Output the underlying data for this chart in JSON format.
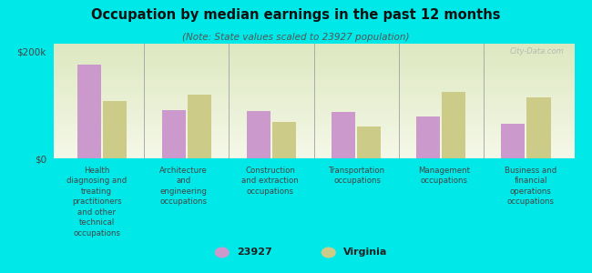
{
  "title": "Occupation by median earnings in the past 12 months",
  "subtitle": "(Note: State values scaled to 23927 population)",
  "categories": [
    "Health\ndiagnosing and\ntreating\npractitioners\nand other\ntechnical\noccupations",
    "Architecture\nand\nengineering\noccupations",
    "Construction\nand extraction\noccupations",
    "Transportation\noccupations",
    "Management\noccupations",
    "Business and\nfinancial\noperations\noccupations"
  ],
  "values_23927": [
    175000,
    90000,
    88000,
    87000,
    78000,
    65000
  ],
  "values_virginia": [
    107000,
    120000,
    68000,
    60000,
    125000,
    115000
  ],
  "color_23927": "#cc99cc",
  "color_virginia": "#cccc88",
  "background_fig": "#00e8e8",
  "ylim": [
    0,
    215000
  ],
  "yticks": [
    0,
    200000
  ],
  "ytick_labels": [
    "$0",
    "$200k"
  ],
  "watermark": "City-Data.com",
  "legend_label_23927": "23927",
  "legend_label_virginia": "Virginia",
  "bar_width": 0.28
}
